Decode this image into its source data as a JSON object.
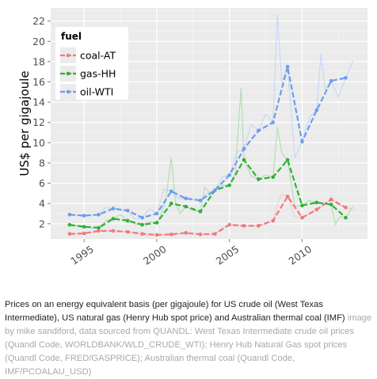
{
  "chart_data": {
    "type": "line",
    "title": "",
    "xlabel": "",
    "ylabel": "US$ per gigajoule",
    "xlim": [
      1992.7,
      2014.5
    ],
    "ylim": [
      0.5,
      23.3
    ],
    "xticks": [
      1995,
      2000,
      2005,
      2010
    ],
    "yticks": [
      2,
      4,
      6,
      8,
      10,
      12,
      14,
      16,
      18,
      20,
      22
    ],
    "grid": true,
    "legend": {
      "title": "fuel",
      "placement": "top-left"
    },
    "series": [
      {
        "name": "coal-AT",
        "color": "#f0797f",
        "x": [
          1994,
          1995,
          1996,
          1997,
          1998,
          1999,
          2000,
          2001,
          2002,
          2003,
          2004,
          2005,
          2006,
          2007,
          2008,
          2009,
          2010,
          2011,
          2012,
          2013
        ],
        "values": [
          1.0,
          1.05,
          1.3,
          1.3,
          1.2,
          1.0,
          0.9,
          0.95,
          1.1,
          0.95,
          1.0,
          1.9,
          1.8,
          1.8,
          2.3,
          4.7,
          2.6,
          3.4,
          4.4,
          3.6
        ]
      },
      {
        "name": "gas-HH",
        "color": "#2eb135",
        "x": [
          1994,
          1995,
          1996,
          1997,
          1998,
          1999,
          2000,
          2001,
          2002,
          2003,
          2004,
          2005,
          2006,
          2007,
          2008,
          2009,
          2010,
          2011,
          2012,
          2013
        ],
        "values": [
          1.9,
          1.7,
          1.6,
          2.5,
          2.3,
          1.9,
          2.1,
          4.0,
          3.7,
          3.2,
          5.3,
          5.8,
          8.3,
          6.4,
          6.6,
          8.3,
          3.8,
          4.1,
          3.9,
          2.6
        ]
      },
      {
        "name": "oil-WTI",
        "color": "#6d9cf0",
        "x": [
          1994,
          1995,
          1996,
          1997,
          1998,
          1999,
          2000,
          2001,
          2002,
          2003,
          2004,
          2005,
          2006,
          2007,
          2008,
          2009,
          2010,
          2011,
          2012,
          2013
        ],
        "values": [
          2.9,
          2.8,
          2.9,
          3.5,
          3.3,
          2.6,
          3.0,
          5.2,
          4.5,
          4.3,
          5.3,
          6.8,
          9.4,
          11.2,
          12.0,
          17.5,
          10.1,
          13.2,
          16.1,
          16.4
        ]
      }
    ],
    "monthly_series": [
      {
        "name": "coal-AT",
        "x": [
          1994.0,
          1994.5,
          1995.0,
          1995.5,
          1996.0,
          1996.5,
          1997.0,
          1997.5,
          1998.0,
          1998.5,
          1999.0,
          1999.5,
          2000.0,
          2000.5,
          2001.0,
          2001.5,
          2002.0,
          2002.5,
          2003.0,
          2003.5,
          2004.0,
          2004.5,
          2005.0,
          2005.5,
          2006.0,
          2006.5,
          2007.0,
          2007.5,
          2008.0,
          2008.3,
          2008.6,
          2009.0,
          2009.5,
          2010.0,
          2010.5,
          2011.0,
          2011.5,
          2012.0,
          2012.5,
          2013.0,
          2013.5
        ],
        "values": [
          1.0,
          1.0,
          1.05,
          1.1,
          1.3,
          1.35,
          1.3,
          1.25,
          1.2,
          1.1,
          1.0,
          0.95,
          0.9,
          0.92,
          0.95,
          1.0,
          1.1,
          1.05,
          0.95,
          0.97,
          1.0,
          1.6,
          1.9,
          1.85,
          1.8,
          1.8,
          1.8,
          2.0,
          2.3,
          3.9,
          4.9,
          4.7,
          2.7,
          2.6,
          3.0,
          3.4,
          3.9,
          4.4,
          3.9,
          3.6,
          3.4
        ]
      },
      {
        "name": "gas-HH",
        "x": [
          1994.0,
          1994.5,
          1995.0,
          1995.5,
          1996.0,
          1996.5,
          1997.0,
          1997.5,
          1998.0,
          1998.5,
          1999.0,
          1999.5,
          2000.0,
          2000.3,
          2000.6,
          2001.0,
          2001.3,
          2001.6,
          2002.0,
          2002.5,
          2003.0,
          2003.3,
          2003.6,
          2004.0,
          2004.5,
          2005.0,
          2005.4,
          2005.8,
          2006.0,
          2006.5,
          2007.0,
          2007.5,
          2008.0,
          2008.3,
          2008.6,
          2009.0,
          2009.5,
          2010.0,
          2010.5,
          2011.0,
          2011.5,
          2012.0,
          2012.3,
          2012.6,
          2013.0,
          2013.5
        ],
        "values": [
          1.9,
          1.8,
          1.7,
          1.6,
          1.6,
          2.3,
          2.5,
          2.9,
          2.3,
          2.0,
          1.9,
          2.2,
          2.1,
          3.0,
          4.2,
          8.5,
          4.0,
          3.0,
          3.7,
          3.3,
          3.2,
          5.6,
          5.1,
          5.3,
          5.8,
          5.8,
          7.0,
          15.4,
          8.3,
          6.7,
          6.4,
          6.8,
          6.6,
          11.5,
          9.0,
          8.3,
          3.7,
          3.8,
          4.3,
          4.1,
          4.0,
          3.9,
          1.9,
          2.7,
          2.6,
          3.7
        ]
      },
      {
        "name": "oil-WTI",
        "x": [
          1994.0,
          1994.5,
          1995.0,
          1995.5,
          1996.0,
          1996.5,
          1997.0,
          1997.5,
          1998.0,
          1998.5,
          1999.0,
          1999.5,
          2000.0,
          2000.5,
          2001.0,
          2001.5,
          2002.0,
          2002.5,
          2003.0,
          2003.5,
          2004.0,
          2004.5,
          2005.0,
          2005.5,
          2006.0,
          2006.5,
          2007.0,
          2007.5,
          2008.0,
          2008.3,
          2008.6,
          2009.0,
          2009.5,
          2010.0,
          2010.5,
          2011.0,
          2011.3,
          2011.6,
          2012.0,
          2012.5,
          2013.0,
          2013.5
        ],
        "values": [
          2.9,
          2.8,
          2.8,
          2.9,
          2.9,
          3.6,
          3.5,
          3.3,
          3.3,
          2.5,
          2.6,
          3.5,
          3.0,
          5.4,
          5.2,
          4.5,
          4.5,
          4.4,
          4.3,
          5.0,
          5.3,
          6.6,
          6.8,
          9.0,
          9.4,
          11.8,
          11.2,
          12.8,
          12.0,
          22.6,
          16.0,
          17.5,
          8.5,
          10.1,
          12.5,
          13.2,
          18.7,
          15.2,
          16.1,
          14.5,
          16.4,
          18.1
        ]
      }
    ]
  },
  "caption": {
    "main": "Prices on an energy equivalent basis (per gigajoule) for US crude oil (West Texas Intermediate), US natural gas (Henry Hub spot price) and Australian thermal coal (IMF)",
    "credit": "image by mike sandiford, data sourced from QUANDL: West Texas Intermediate crude oil prices (Quandl Code, WORLDBANK/WLD_CRUDE_WTI); Henry Hub Natural Gas spot prices (Quandl Code, FRED/GASPRICE); Australian thermal coal (Quandl Code, IMF/PCOALAU_USD)"
  }
}
